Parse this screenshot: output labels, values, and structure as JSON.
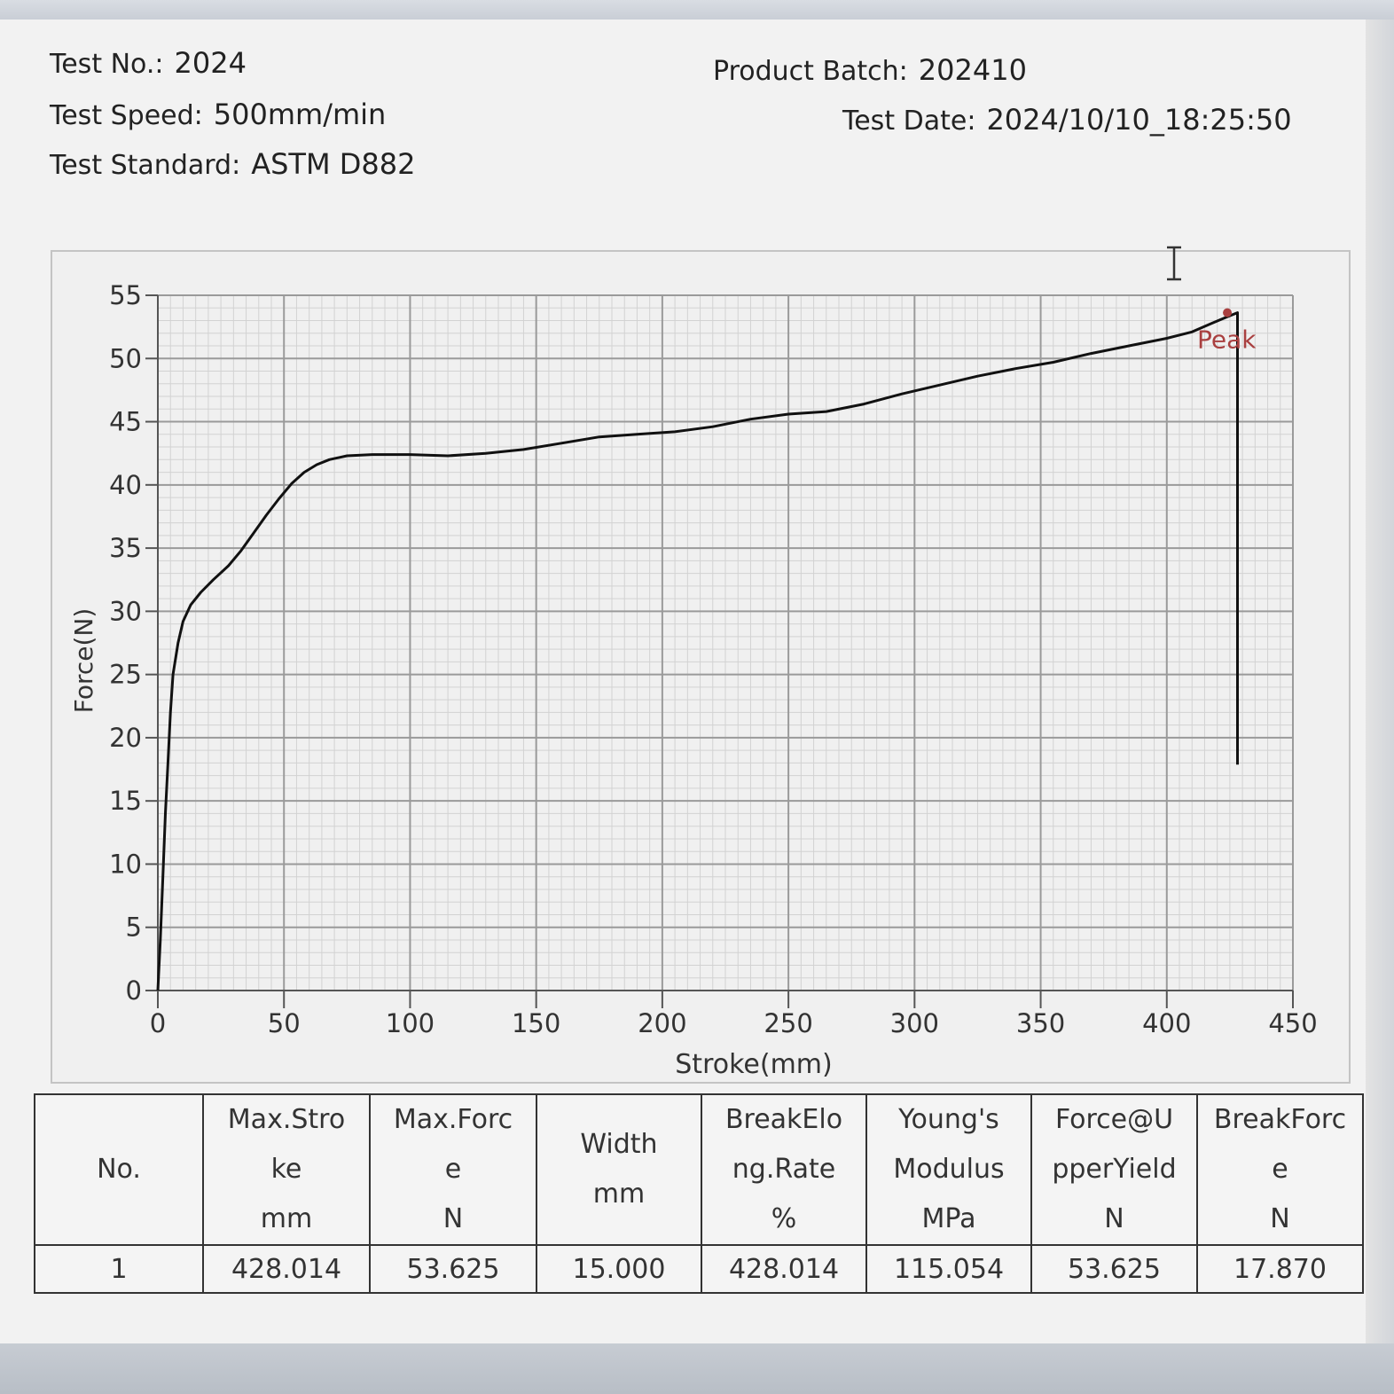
{
  "header": {
    "test_no_label": "Test No.:",
    "test_no": "2024",
    "product_batch_label": "Product Batch:",
    "product_batch": "202410",
    "test_speed_label": "Test Speed:",
    "test_speed": "500mm/min",
    "test_date_label": "Test Date:",
    "test_date": "2024/10/10_18:25:50",
    "test_standard_label": "Test Standard:",
    "test_standard": "ASTM D882"
  },
  "chart_data": {
    "type": "line",
    "title": "",
    "xlabel": "Stroke(mm)",
    "ylabel": "Force(N)",
    "xlim": [
      0,
      450
    ],
    "ylim": [
      0,
      55
    ],
    "xticks": [
      0,
      50,
      100,
      150,
      200,
      250,
      300,
      350,
      400,
      450
    ],
    "yticks": [
      0,
      5,
      10,
      15,
      20,
      25,
      30,
      35,
      40,
      45,
      50,
      55
    ],
    "grid": true,
    "series": [
      {
        "color": "#111111",
        "x": [
          0,
          1,
          2,
          3,
          4,
          5,
          6,
          8,
          10,
          13,
          17,
          22,
          28,
          33,
          38,
          43,
          48,
          53,
          58,
          63,
          68,
          75,
          85,
          100,
          115,
          130,
          145,
          160,
          175,
          190,
          205,
          220,
          235,
          250,
          265,
          280,
          295,
          310,
          325,
          340,
          355,
          370,
          385,
          400,
          410,
          418,
          424,
          428.014,
          428.014
        ],
        "y": [
          0,
          4,
          9,
          14,
          18,
          22,
          25,
          27.5,
          29.2,
          30.5,
          31.5,
          32.5,
          33.6,
          34.8,
          36.2,
          37.6,
          38.9,
          40.1,
          41.0,
          41.6,
          42.0,
          42.3,
          42.4,
          42.4,
          42.3,
          42.5,
          42.8,
          43.3,
          43.8,
          44.0,
          44.2,
          44.6,
          45.2,
          45.6,
          45.8,
          46.4,
          47.2,
          47.9,
          48.6,
          49.2,
          49.7,
          50.4,
          51.0,
          51.6,
          52.1,
          52.8,
          53.3,
          53.625,
          17.87
        ]
      }
    ],
    "annotations": [
      {
        "x": 424,
        "y": 53.625,
        "label": "Peak",
        "color": "#a94040"
      }
    ]
  },
  "table": {
    "headers": [
      [
        "No."
      ],
      [
        "Max.Stro",
        "ke",
        "mm"
      ],
      [
        "Max.Forc",
        "e",
        "N"
      ],
      [
        "Width",
        "mm"
      ],
      [
        "BreakElo",
        "ng.Rate",
        "%"
      ],
      [
        "Young's",
        "Modulus",
        "MPa"
      ],
      [
        "Force@U",
        "pperYield",
        "N"
      ],
      [
        "BreakForc",
        "e",
        "N"
      ]
    ],
    "rows": [
      [
        "1",
        "428.014",
        "53.625",
        "15.000",
        "428.014",
        "115.054",
        "53.625",
        "17.870"
      ]
    ]
  }
}
